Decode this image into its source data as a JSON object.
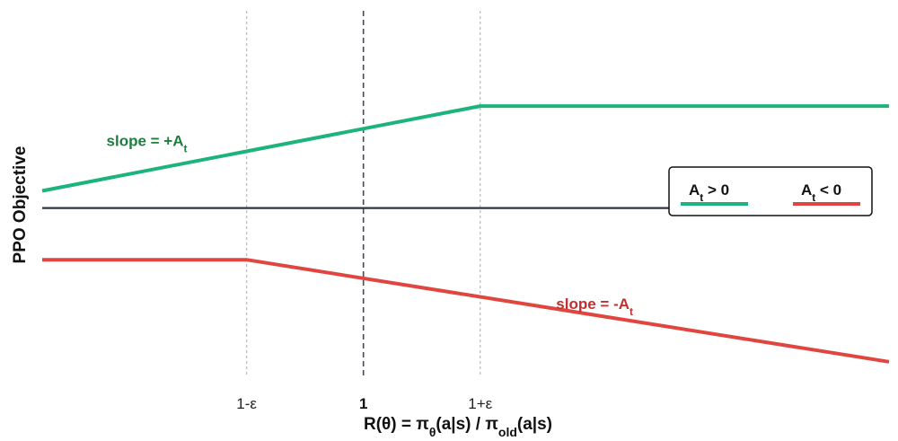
{
  "chart_data": {
    "type": "line",
    "title": "",
    "ylabel": "PPO Objective",
    "xlabel": {
      "parts": [
        {
          "t": "R(θ) = π",
          "sub": false
        },
        {
          "t": "θ",
          "sub": true
        },
        {
          "t": "(a|s) / π",
          "sub": false
        },
        {
          "t": "old",
          "sub": true
        },
        {
          "t": "(a|s)",
          "sub": false
        }
      ]
    },
    "xlim": [
      0.45,
      1.9
    ],
    "ylim": [
      0,
      1
    ],
    "epsilon": 0.2,
    "x_ticks": [
      {
        "value": 0.8,
        "label": "1-ε",
        "bold": false
      },
      {
        "value": 1.0,
        "label": "1",
        "bold": true
      },
      {
        "value": 1.2,
        "label": "1+ε",
        "bold": false
      }
    ],
    "vlines": [
      {
        "x": 0.8,
        "style": "dotted",
        "color": "#b8b8b8"
      },
      {
        "x": 1.0,
        "style": "dashed",
        "color": "#444a55"
      },
      {
        "x": 1.2,
        "style": "dotted",
        "color": "#b8b8b8"
      }
    ],
    "hline": {
      "y": 0.53,
      "color": "#2f3640"
    },
    "series": [
      {
        "name_parts": [
          {
            "t": "A",
            "sub": false
          },
          {
            "t": "t",
            "sub": true
          },
          {
            "t": " > 0",
            "sub": false
          }
        ],
        "color": "#1db37c",
        "points": [
          [
            0.45,
            0.595
          ],
          [
            1.2,
            0.915
          ],
          [
            1.9,
            0.915
          ]
        ]
      },
      {
        "name_parts": [
          {
            "t": "A",
            "sub": false
          },
          {
            "t": "t",
            "sub": true
          },
          {
            "t": " < 0",
            "sub": false
          }
        ],
        "color": "#e0463f",
        "points": [
          [
            0.45,
            0.335
          ],
          [
            0.8,
            0.335
          ],
          [
            1.9,
            -0.05
          ]
        ]
      }
    ],
    "annotations": [
      {
        "parts": [
          {
            "t": "slope = +A",
            "sub": false
          },
          {
            "t": "t",
            "sub": true
          }
        ],
        "x": 0.56,
        "y": 0.765,
        "color": "#1e7d3e"
      },
      {
        "parts": [
          {
            "t": "slope = -A",
            "sub": false
          },
          {
            "t": "t",
            "sub": true
          }
        ],
        "x": 1.33,
        "y": 0.15,
        "color": "#c0302e"
      }
    ],
    "legend": {
      "placement": "right"
    },
    "grid": false
  }
}
